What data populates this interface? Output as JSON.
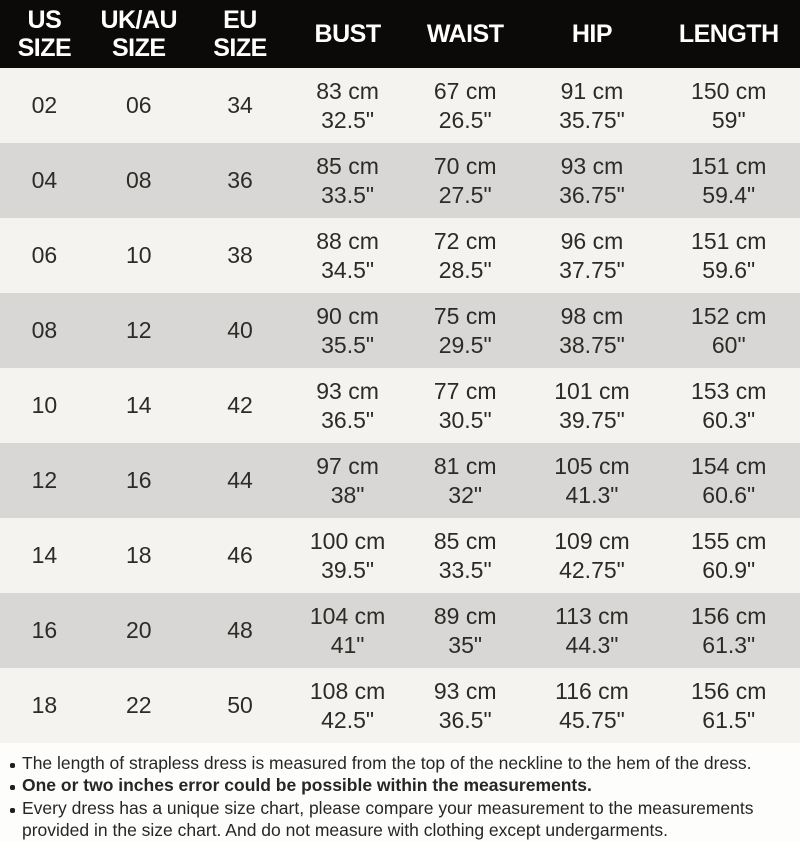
{
  "table": {
    "columns": [
      {
        "key": "us-size",
        "label": "US SIZE",
        "lines": [
          "US",
          "SIZE"
        ]
      },
      {
        "key": "uk-au-size",
        "label": "UK/AU SIZE",
        "lines": [
          "UK/AU",
          "SIZE"
        ]
      },
      {
        "key": "eu-size",
        "label": "EU SIZE",
        "lines": [
          "EU",
          "SIZE"
        ]
      },
      {
        "key": "bust",
        "label": "BUST",
        "lines": [
          "BUST"
        ]
      },
      {
        "key": "waist",
        "label": "WAIST",
        "lines": [
          "WAIST"
        ]
      },
      {
        "key": "hip",
        "label": "HIP",
        "lines": [
          "HIP"
        ]
      },
      {
        "key": "length",
        "label": "LENGTH",
        "lines": [
          "LENGTH"
        ]
      }
    ],
    "rows": [
      {
        "us": "02",
        "uk": "06",
        "eu": "34",
        "bust": {
          "cm": "83 cm",
          "in": "32.5\""
        },
        "waist": {
          "cm": "67 cm",
          "in": "26.5\""
        },
        "hip": {
          "cm": "91 cm",
          "in": "35.75\""
        },
        "length": {
          "cm": "150 cm",
          "in": "59\""
        }
      },
      {
        "us": "04",
        "uk": "08",
        "eu": "36",
        "bust": {
          "cm": "85 cm",
          "in": "33.5\""
        },
        "waist": {
          "cm": "70 cm",
          "in": "27.5\""
        },
        "hip": {
          "cm": "93 cm",
          "in": "36.75\""
        },
        "length": {
          "cm": "151 cm",
          "in": "59.4\""
        }
      },
      {
        "us": "06",
        "uk": "10",
        "eu": "38",
        "bust": {
          "cm": "88 cm",
          "in": "34.5\""
        },
        "waist": {
          "cm": "72 cm",
          "in": "28.5\""
        },
        "hip": {
          "cm": "96 cm",
          "in": "37.75\""
        },
        "length": {
          "cm": "151 cm",
          "in": "59.6\""
        }
      },
      {
        "us": "08",
        "uk": "12",
        "eu": "40",
        "bust": {
          "cm": "90 cm",
          "in": "35.5\""
        },
        "waist": {
          "cm": "75 cm",
          "in": "29.5\""
        },
        "hip": {
          "cm": "98 cm",
          "in": "38.75\""
        },
        "length": {
          "cm": "152 cm",
          "in": "60\""
        }
      },
      {
        "us": "10",
        "uk": "14",
        "eu": "42",
        "bust": {
          "cm": "93 cm",
          "in": "36.5\""
        },
        "waist": {
          "cm": "77 cm",
          "in": "30.5\""
        },
        "hip": {
          "cm": "101 cm",
          "in": "39.75\""
        },
        "length": {
          "cm": "153 cm",
          "in": "60.3\""
        }
      },
      {
        "us": "12",
        "uk": "16",
        "eu": "44",
        "bust": {
          "cm": "97 cm",
          "in": "38\""
        },
        "waist": {
          "cm": "81 cm",
          "in": "32\""
        },
        "hip": {
          "cm": "105 cm",
          "in": "41.3\""
        },
        "length": {
          "cm": "154 cm",
          "in": "60.6\""
        }
      },
      {
        "us": "14",
        "uk": "18",
        "eu": "46",
        "bust": {
          "cm": "100 cm",
          "in": "39.5\""
        },
        "waist": {
          "cm": "85 cm",
          "in": "33.5\""
        },
        "hip": {
          "cm": "109 cm",
          "in": "42.75\""
        },
        "length": {
          "cm": "155 cm",
          "in": "60.9\""
        }
      },
      {
        "us": "16",
        "uk": "20",
        "eu": "48",
        "bust": {
          "cm": "104 cm",
          "in": "41\""
        },
        "waist": {
          "cm": "89 cm",
          "in": "35\""
        },
        "hip": {
          "cm": "113 cm",
          "in": "44.3\""
        },
        "length": {
          "cm": "156 cm",
          "in": "61.3\""
        }
      },
      {
        "us": "18",
        "uk": "22",
        "eu": "50",
        "bust": {
          "cm": "108 cm",
          "in": "42.5\""
        },
        "waist": {
          "cm": "93 cm",
          "in": "36.5\""
        },
        "hip": {
          "cm": "116 cm",
          "in": "45.75\""
        },
        "length": {
          "cm": "156 cm",
          "in": "61.5\""
        }
      }
    ]
  },
  "notes": [
    {
      "text": "The length of strapless dress is measured from the top of the neckline to the hem of the dress.",
      "bold": false
    },
    {
      "text": "One or two inches error could be possible within the measurements.",
      "bold": true
    },
    {
      "text": "Every dress has a unique size chart, please compare your measurement to the measurements provided in the size chart. And do not measure with clothing except undergarments.",
      "bold": false
    }
  ],
  "colors": {
    "header_bg": "#0b0a08",
    "header_text": "#ffffff",
    "row_light": "#f5f3f0",
    "row_gray": "#d8d7d5",
    "body_text": "#2d2b28",
    "notes_bg": "#fdfdfc"
  },
  "chart_data": {
    "type": "table",
    "columns": [
      "US SIZE",
      "UK/AU SIZE",
      "EU SIZE",
      "BUST",
      "WAIST",
      "HIP",
      "LENGTH"
    ],
    "rows": [
      [
        "02",
        "06",
        "34",
        "83 cm 32.5\"",
        "67 cm 26.5\"",
        "91 cm 35.75\"",
        "150 cm 59\""
      ],
      [
        "04",
        "08",
        "36",
        "85 cm 33.5\"",
        "70 cm 27.5\"",
        "93 cm 36.75\"",
        "151 cm 59.4\""
      ],
      [
        "06",
        "10",
        "38",
        "88 cm 34.5\"",
        "72 cm 28.5\"",
        "96 cm 37.75\"",
        "151 cm 59.6\""
      ],
      [
        "08",
        "12",
        "40",
        "90 cm 35.5\"",
        "75 cm 29.5\"",
        "98 cm 38.75\"",
        "152 cm 60\""
      ],
      [
        "10",
        "14",
        "42",
        "93 cm 36.5\"",
        "77 cm 30.5\"",
        "101 cm 39.75\"",
        "153 cm 60.3\""
      ],
      [
        "12",
        "16",
        "44",
        "97 cm 38\"",
        "81 cm 32\"",
        "105 cm 41.3\"",
        "154 cm 60.6\""
      ],
      [
        "14",
        "18",
        "46",
        "100 cm 39.5\"",
        "85 cm 33.5\"",
        "109 cm 42.75\"",
        "155 cm 60.9\""
      ],
      [
        "16",
        "20",
        "48",
        "104 cm 41\"",
        "89 cm 35\"",
        "113 cm 44.3\"",
        "156 cm 61.3\""
      ],
      [
        "18",
        "22",
        "50",
        "108 cm 42.5\"",
        "93 cm 36.5\"",
        "116 cm 45.75\"",
        "156 cm 61.5\""
      ]
    ],
    "notes": [
      "The length of strapless dress is measured from the top of the neckline to the hem of the dress.",
      "One or two inches error could be possible within the measurements.",
      "Every dress has a unique size chart, please compare your measurement to the measurements provided in the size chart. And do not measure with clothing except undergarments."
    ]
  }
}
